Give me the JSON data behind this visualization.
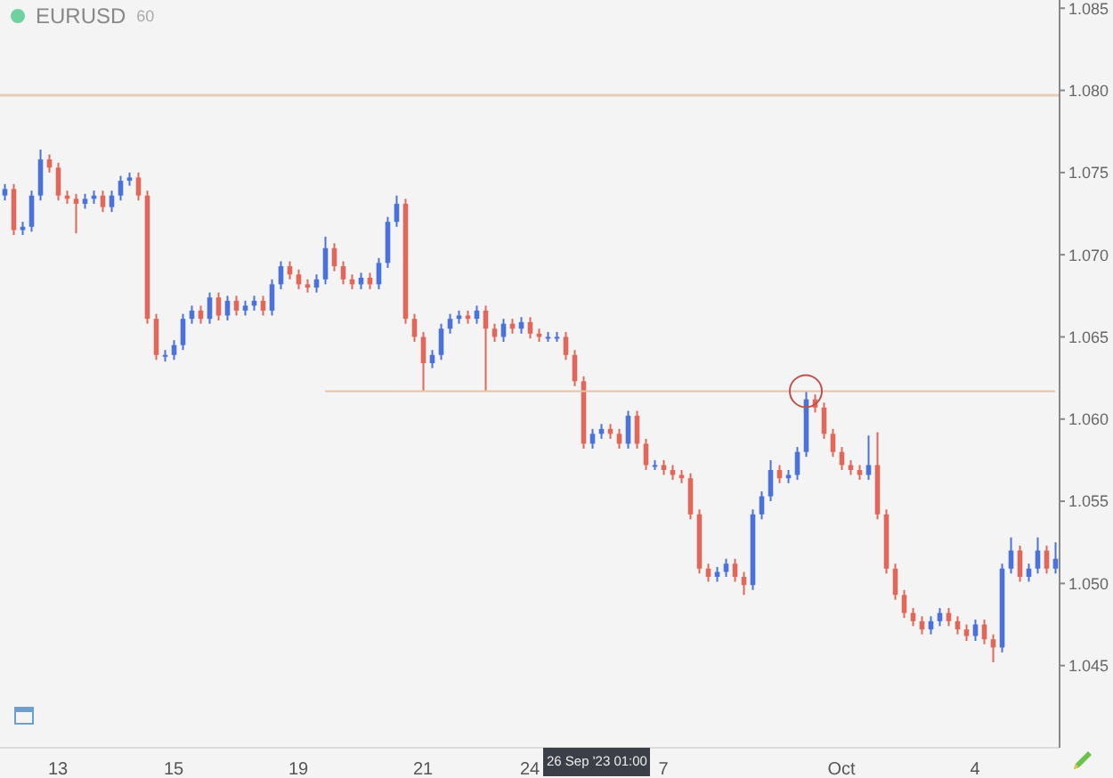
{
  "chart_data": {
    "type": "candlestick",
    "title": "EURUSD",
    "subtitle": "60",
    "categories": [
      null,
      null,
      null,
      null,
      null,
      null,
      "13",
      null,
      null,
      null,
      null,
      null,
      null,
      null,
      null,
      null,
      null,
      null,
      null,
      "15",
      null,
      null,
      null,
      null,
      null,
      null,
      null,
      null,
      null,
      null,
      null,
      null,
      null,
      "19",
      null,
      null,
      null,
      null,
      null,
      null,
      null,
      null,
      null,
      null,
      null,
      null,
      null,
      "21",
      null,
      null,
      null,
      null,
      null,
      null,
      null,
      null,
      null,
      null,
      null,
      "24",
      null,
      null,
      null,
      null,
      null,
      null,
      null,
      null,
      null,
      null,
      null,
      null,
      null,
      null,
      "7",
      null,
      null,
      null,
      null,
      null,
      null,
      null,
      null,
      null,
      null,
      null,
      null,
      null,
      null,
      null,
      null,
      null,
      null,
      null,
      "Oct",
      null,
      null,
      null,
      null,
      null,
      null,
      null,
      null,
      null,
      null,
      null,
      null,
      null,
      null,
      "4",
      null,
      null,
      null,
      null,
      null,
      null,
      null,
      null,
      null
    ],
    "colors": [
      "#4a72d8",
      "#e0685a",
      "#4a72d8",
      "#4a72d8",
      "#4a72d8",
      "#e0685a",
      "#e0685a",
      "#e0685a",
      "#e0685a",
      "#4a72d8",
      "#4a72d8",
      "#e0685a",
      "#4a72d8",
      "#4a72d8",
      "#4a72d8",
      "#e0685a",
      "#e0685a",
      "#e0685a",
      "#4a72d8",
      "#4a72d8",
      "#4a72d8",
      "#4a72d8",
      "#e0685a",
      "#4a72d8",
      "#e0685a",
      "#4a72d8",
      "#e0685a",
      "#4a72d8",
      "#4a72d8",
      "#e0685a",
      "#4a72d8",
      "#4a72d8",
      "#e0685a",
      "#e0685a",
      "#e0685a",
      "#4a72d8",
      "#4a72d8",
      "#e0685a",
      "#e0685a",
      "#e0685a",
      "#4a72d8",
      "#e0685a",
      "#4a72d8",
      "#4a72d8",
      "#4a72d8",
      "#e0685a",
      "#e0685a",
      "#e0685a",
      "#4a72d8",
      "#4a72d8",
      "#4a72d8",
      "#4a72d8",
      "#e0685a",
      "#4a72d8",
      "#e0685a",
      "#e0685a",
      "#4a72d8",
      "#e0685a",
      "#4a72d8",
      "#e0685a",
      "#e0685a",
      "#4a72d8",
      "#4a72d8",
      "#e0685a",
      "#e0685a",
      "#e0685a",
      "#4a72d8",
      "#4a72d8",
      "#e0685a",
      "#e0685a",
      "#4a72d8",
      "#e0685a",
      "#e0685a",
      "#4a72d8",
      "#e0685a",
      "#e0685a",
      "#e0685a",
      "#e0685a",
      "#e0685a",
      "#e0685a",
      "#4a72d8",
      "#4a72d8",
      "#e0685a",
      "#e0685a",
      "#4a72d8",
      "#4a72d8",
      "#4a72d8",
      "#e0685a",
      "#4a72d8",
      "#4a72d8",
      "#4a72d8",
      "#e0685a",
      "#e0685a",
      "#e0685a",
      "#e0685a",
      "#e0685a",
      "#e0685a",
      "#4a72d8",
      "#e0685a",
      "#e0685a",
      "#e0685a",
      "#e0685a",
      "#e0685a",
      "#e0685a",
      "#4a72d8",
      "#4a72d8",
      "#e0685a",
      "#e0685a",
      "#e0685a",
      "#4a72d8",
      "#e0685a",
      "#e0685a",
      "#4a72d8",
      "#4a72d8",
      "#e0685a",
      "#4a72d8",
      "#4a72d8",
      "#e0685a",
      "#4a72d8"
    ],
    "ohlc": [
      [
        1.0736,
        1.0743,
        1.0733,
        1.074
      ],
      [
        1.074,
        1.0743,
        1.0712,
        1.0715
      ],
      [
        1.0715,
        1.072,
        1.0712,
        1.0717
      ],
      [
        1.0717,
        1.0739,
        1.0714,
        1.0736
      ],
      [
        1.0736,
        1.0764,
        1.0733,
        1.0758
      ],
      [
        1.0758,
        1.0761,
        1.075,
        1.0753
      ],
      [
        1.0753,
        1.0756,
        1.0733,
        1.0736
      ],
      [
        1.0736,
        1.0739,
        1.0731,
        1.0734
      ],
      [
        1.0734,
        1.0737,
        1.0713,
        1.0731
      ],
      [
        1.0731,
        1.0737,
        1.0728,
        1.0734
      ],
      [
        1.0734,
        1.0739,
        1.0731,
        1.0736
      ],
      [
        1.0736,
        1.0739,
        1.0726,
        1.0729
      ],
      [
        1.0729,
        1.0739,
        1.0726,
        1.0736
      ],
      [
        1.0736,
        1.0748,
        1.0733,
        1.0745
      ],
      [
        1.0745,
        1.075,
        1.0742,
        1.0747
      ],
      [
        1.0747,
        1.075,
        1.0733,
        1.0736
      ],
      [
        1.0736,
        1.0739,
        1.0658,
        1.0661
      ],
      [
        1.0661,
        1.0664,
        1.0636,
        1.0639
      ],
      [
        1.0639,
        1.0642,
        1.0635,
        1.0639
      ],
      [
        1.0639,
        1.0648,
        1.0636,
        1.0645
      ],
      [
        1.0645,
        1.0664,
        1.0642,
        1.0661
      ],
      [
        1.0661,
        1.0669,
        1.0658,
        1.0666
      ],
      [
        1.0666,
        1.0669,
        1.0658,
        1.0661
      ],
      [
        1.0661,
        1.0677,
        1.0658,
        1.0674
      ],
      [
        1.0674,
        1.0677,
        1.066,
        1.0663
      ],
      [
        1.0663,
        1.0675,
        1.066,
        1.0672
      ],
      [
        1.0672,
        1.0675,
        1.0663,
        1.0666
      ],
      [
        1.0666,
        1.0672,
        1.0663,
        1.0669
      ],
      [
        1.0669,
        1.0675,
        1.0666,
        1.0672
      ],
      [
        1.0672,
        1.0675,
        1.0663,
        1.0666
      ],
      [
        1.0666,
        1.0685,
        1.0663,
        1.0682
      ],
      [
        1.0682,
        1.0696,
        1.0679,
        1.0693
      ],
      [
        1.0693,
        1.0696,
        1.0685,
        1.0688
      ],
      [
        1.0688,
        1.0691,
        1.0679,
        1.0682
      ],
      [
        1.0682,
        1.0685,
        1.0677,
        1.068
      ],
      [
        1.068,
        1.0688,
        1.0677,
        1.0685
      ],
      [
        1.0685,
        1.0711,
        1.0682,
        1.0704
      ],
      [
        1.0704,
        1.0707,
        1.069,
        1.0693
      ],
      [
        1.0693,
        1.0696,
        1.0682,
        1.0685
      ],
      [
        1.0685,
        1.0688,
        1.0679,
        1.0682
      ],
      [
        1.0682,
        1.0689,
        1.0679,
        1.0686
      ],
      [
        1.0686,
        1.0689,
        1.0679,
        1.0682
      ],
      [
        1.0682,
        1.0698,
        1.0679,
        1.0695
      ],
      [
        1.0695,
        1.0723,
        1.0692,
        1.072
      ],
      [
        1.072,
        1.0736,
        1.0717,
        1.0731
      ],
      [
        1.0731,
        1.0734,
        1.0658,
        1.0661
      ],
      [
        1.0661,
        1.0664,
        1.0647,
        1.065
      ],
      [
        1.065,
        1.0653,
        1.0617,
        1.0634
      ],
      [
        1.0634,
        1.0642,
        1.0631,
        1.0639
      ],
      [
        1.0639,
        1.0658,
        1.0636,
        1.0655
      ],
      [
        1.0655,
        1.0664,
        1.0652,
        1.0661
      ],
      [
        1.0661,
        1.0666,
        1.0658,
        1.0663
      ],
      [
        1.0663,
        1.0666,
        1.0658,
        1.0661
      ],
      [
        1.0661,
        1.0669,
        1.0658,
        1.0666
      ],
      [
        1.0666,
        1.0669,
        1.0617,
        1.0655
      ],
      [
        1.0655,
        1.0658,
        1.0647,
        1.065
      ],
      [
        1.065,
        1.0661,
        1.0647,
        1.0658
      ],
      [
        1.0658,
        1.0661,
        1.0652,
        1.0655
      ],
      [
        1.0655,
        1.0662,
        1.0652,
        1.0659
      ],
      [
        1.0659,
        1.0662,
        1.0649,
        1.0652
      ],
      [
        1.0652,
        1.0655,
        1.0647,
        1.065
      ],
      [
        1.065,
        1.0653,
        1.0647,
        1.065
      ],
      [
        1.065,
        1.0653,
        1.0647,
        1.065
      ],
      [
        1.065,
        1.0653,
        1.0636,
        1.0639
      ],
      [
        1.0639,
        1.0642,
        1.062,
        1.0623
      ],
      [
        1.0623,
        1.0626,
        1.0582,
        1.0585
      ],
      [
        1.0585,
        1.0594,
        1.0582,
        1.0591
      ],
      [
        1.0591,
        1.0597,
        1.0588,
        1.0594
      ],
      [
        1.0594,
        1.0597,
        1.0588,
        1.0591
      ],
      [
        1.0591,
        1.0594,
        1.0582,
        1.0585
      ],
      [
        1.0585,
        1.0605,
        1.0582,
        1.0602
      ],
      [
        1.0602,
        1.0605,
        1.0582,
        1.0585
      ],
      [
        1.0585,
        1.0588,
        1.0569,
        1.0572
      ],
      [
        1.0572,
        1.0575,
        1.0569,
        1.0572
      ],
      [
        1.0572,
        1.0575,
        1.0566,
        1.0569
      ],
      [
        1.0569,
        1.0572,
        1.0563,
        1.0566
      ],
      [
        1.0566,
        1.0569,
        1.0561,
        1.0564
      ],
      [
        1.0564,
        1.0567,
        1.0539,
        1.0542
      ],
      [
        1.0542,
        1.0545,
        1.0506,
        1.0509
      ],
      [
        1.0509,
        1.0512,
        1.0501,
        1.0504
      ],
      [
        1.0504,
        1.051,
        1.0501,
        1.0507
      ],
      [
        1.0507,
        1.0515,
        1.0504,
        1.0512
      ],
      [
        1.0512,
        1.0515,
        1.0501,
        1.0504
      ],
      [
        1.0504,
        1.0507,
        1.0493,
        1.0499
      ],
      [
        1.0499,
        1.0545,
        1.0496,
        1.0542
      ],
      [
        1.0542,
        1.0556,
        1.0539,
        1.0553
      ],
      [
        1.0553,
        1.0575,
        1.055,
        1.0569
      ],
      [
        1.0569,
        1.0572,
        1.0561,
        1.0564
      ],
      [
        1.0564,
        1.0569,
        1.0561,
        1.0566
      ],
      [
        1.0566,
        1.0583,
        1.0563,
        1.058
      ],
      [
        1.058,
        1.0617,
        1.0577,
        1.0612
      ],
      [
        1.0612,
        1.0615,
        1.0604,
        1.0607
      ],
      [
        1.0607,
        1.061,
        1.0588,
        1.0591
      ],
      [
        1.0591,
        1.0594,
        1.0577,
        1.058
      ],
      [
        1.058,
        1.0583,
        1.0569,
        1.0572
      ],
      [
        1.0572,
        1.0575,
        1.0566,
        1.0569
      ],
      [
        1.0569,
        1.0572,
        1.0563,
        1.0566
      ],
      [
        1.0566,
        1.059,
        1.0563,
        1.0572
      ],
      [
        1.0572,
        1.0592,
        1.0539,
        1.0542
      ],
      [
        1.0542,
        1.0545,
        1.0506,
        1.0509
      ],
      [
        1.0509,
        1.0512,
        1.049,
        1.0493
      ],
      [
        1.0493,
        1.0496,
        1.0479,
        1.0482
      ],
      [
        1.0482,
        1.0485,
        1.0474,
        1.0477
      ],
      [
        1.0477,
        1.048,
        1.0469,
        1.0472
      ],
      [
        1.0472,
        1.048,
        1.0469,
        1.0477
      ],
      [
        1.0477,
        1.0485,
        1.0474,
        1.0482
      ],
      [
        1.0482,
        1.0485,
        1.0474,
        1.0477
      ],
      [
        1.0477,
        1.048,
        1.0469,
        1.0472
      ],
      [
        1.0472,
        1.0475,
        1.0465,
        1.0468
      ],
      [
        1.0468,
        1.0478,
        1.0465,
        1.0475
      ],
      [
        1.0475,
        1.0478,
        1.0463,
        1.0466
      ],
      [
        1.0466,
        1.0469,
        1.0452,
        1.0461
      ],
      [
        1.0461,
        1.0512,
        1.0458,
        1.0509
      ],
      [
        1.0509,
        1.0528,
        1.0506,
        1.052
      ],
      [
        1.052,
        1.0523,
        1.0501,
        1.0504
      ],
      [
        1.0504,
        1.0512,
        1.0501,
        1.0509
      ],
      [
        1.0509,
        1.0528,
        1.0506,
        1.052
      ],
      [
        1.052,
        1.0523,
        1.0506,
        1.0509
      ],
      [
        1.0509,
        1.0525,
        1.0506,
        1.0515
      ]
    ],
    "series": [
      {
        "type": "line",
        "color": "#e6c3a5",
        "values": [
          null,
          null,
          null,
          null,
          null,
          null,
          null,
          null,
          null,
          null,
          null,
          null,
          null,
          null,
          null,
          null,
          null,
          null,
          null,
          null,
          null,
          null,
          null,
          null,
          null,
          null,
          null,
          null,
          null,
          null,
          null,
          null,
          null,
          null,
          null,
          null,
          1.0617,
          1.0617,
          1.0617,
          1.0617,
          1.0617,
          1.0617,
          1.0617,
          1.0617,
          1.0617,
          1.0617,
          1.0617,
          1.0617,
          1.0617,
          1.0617,
          1.0617,
          1.0617,
          1.0617,
          1.0617,
          1.0617,
          1.0617,
          1.0617,
          1.0617,
          1.0617,
          1.0617,
          1.0617,
          1.0617,
          1.0617,
          1.0617,
          1.0617,
          1.0617,
          1.0617,
          1.0617,
          1.0617,
          1.0617,
          1.0617,
          1.0617,
          1.0617,
          1.0617,
          1.0617,
          1.0617,
          1.0617,
          1.0617,
          1.0617,
          1.0617,
          1.0617,
          1.0617,
          1.0617,
          1.0617,
          1.0617,
          1.0617,
          1.0617,
          1.0617,
          1.0617,
          1.0617,
          1.0617,
          1.0617,
          1.0617,
          1.0617,
          1.0617,
          1.0617,
          1.0617,
          1.0617,
          1.0617,
          1.0617,
          1.0617,
          1.0617,
          1.0617,
          1.0617,
          1.0617,
          1.0617,
          1.0617,
          1.0617,
          1.0617,
          1.0617,
          1.0617,
          1.0617,
          1.0617,
          1.0617,
          1.0617,
          1.0617,
          1.0617,
          1.0617,
          1.0617
        ]
      }
    ],
    "ref_lines": [
      {
        "axis": "y",
        "value": 1.0797,
        "color": "#e6cdb5"
      }
    ],
    "annotations": [
      "26 Sep '23 01:00"
    ],
    "ylim": [
      1.04,
      1.0855
    ],
    "yticks": [
      {
        "value": 1.045,
        "label": "1.045"
      },
      {
        "value": 1.05,
        "label": "1.050"
      },
      {
        "value": 1.055,
        "label": "1.055"
      },
      {
        "value": 1.06,
        "label": "1.060"
      },
      {
        "value": 1.065,
        "label": "1.065"
      },
      {
        "value": 1.07,
        "label": "1.070"
      },
      {
        "value": 1.075,
        "label": "1.075"
      },
      {
        "value": 1.08,
        "label": "1.080"
      },
      {
        "value": 1.085,
        "label": "1.085"
      }
    ],
    "grid": false
  }
}
